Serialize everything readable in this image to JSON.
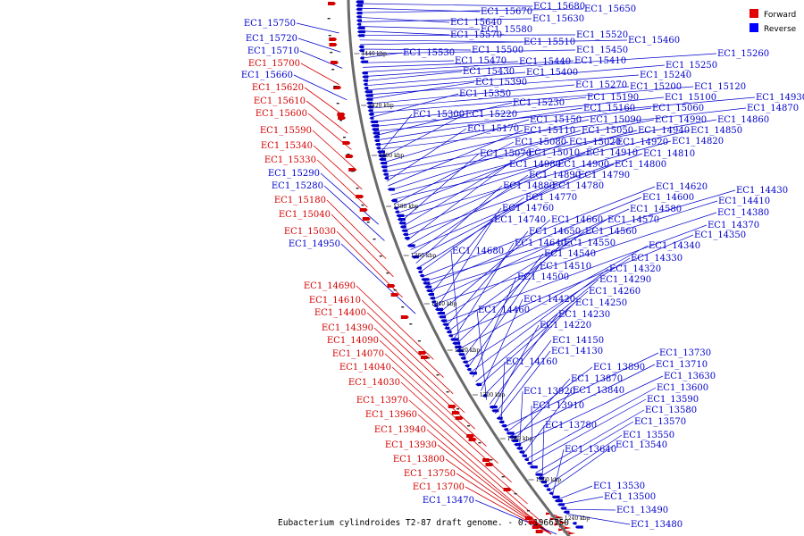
{
  "caption": "Eubacterium cylindroides T2-87 draft genome. - 0..1966750",
  "legend": [
    {
      "name": "Forward",
      "color": "#e00000"
    },
    {
      "name": "Reverse",
      "color": "#0000ff"
    }
  ],
  "colors": {
    "forward": "#d40000",
    "reverse": "#0000cc",
    "backbone": "#808080"
  },
  "ticks": [
    "1440 kbp",
    "1420 kbp",
    "1400 kbp",
    "1380 kbp",
    "1360 kbp",
    "1340 kbp",
    "1320 kbp",
    "1300 kbp",
    "1280 kbp",
    "1260 kbp",
    "1240 kbp"
  ],
  "forward_labels": [
    "EC1_15750",
    "EC1_15720",
    "EC1_15710",
    "EC1_15700",
    "EC1_15660",
    "EC1_15620",
    "EC1_15610",
    "EC1_15600",
    "EC1_15590",
    "EC1_15340",
    "EC1_15330",
    "EC1_15290",
    "EC1_15280",
    "EC1_15180",
    "EC1_15040",
    "EC1_15030",
    "EC1_14950",
    "EC1_14690",
    "EC1_14610",
    "EC1_14400",
    "EC1_14390",
    "EC1_14090",
    "EC1_14070",
    "EC1_14040",
    "EC1_14030",
    "EC1_13970",
    "EC1_13960",
    "EC1_13940",
    "EC1_13930",
    "EC1_13800",
    "EC1_13750",
    "EC1_13700",
    "EC1_13470"
  ],
  "forward_label_strands": [
    "r",
    "r",
    "r",
    "f",
    "r",
    "f",
    "f",
    "f",
    "f",
    "f",
    "f",
    "r",
    "r",
    "f",
    "f",
    "f",
    "r",
    "f",
    "f",
    "f",
    "f",
    "f",
    "f",
    "f",
    "f",
    "f",
    "f",
    "f",
    "f",
    "f",
    "f",
    "f",
    "r"
  ],
  "reverse_labels": [
    "EC1_15680",
    "EC1_15670",
    "EC1_15650",
    "EC1_15640",
    "EC1_15630",
    "EC1_15580",
    "EC1_15570",
    "EC1_15520",
    "EC1_15510",
    "EC1_15460",
    "EC1_15500",
    "EC1_15450",
    "EC1_15530",
    "EC1_15470",
    "EC1_15440",
    "EC1_15410",
    "EC1_15260",
    "EC1_15430",
    "EC1_15400",
    "EC1_15250",
    "EC1_15240",
    "EC1_15390",
    "EC1_15270",
    "EC1_15200",
    "EC1_15120",
    "EC1_15350",
    "EC1_15190",
    "EC1_15100",
    "EC1_14930",
    "EC1_15230",
    "EC1_15160",
    "EC1_15060",
    "EC1_14870",
    "EC1_15300",
    "EC1_15220",
    "EC1_15150",
    "EC1_15090",
    "EC1_14990",
    "EC1_14860",
    "EC1_15170",
    "EC1_15110",
    "EC1_15050",
    "EC1_14940",
    "EC1_14850",
    "EC1_15080",
    "EC1_15020",
    "EC1_14920",
    "EC1_14820",
    "EC1_15070",
    "EC1_15010",
    "EC1_14910",
    "EC1_14810",
    "EC1_14980",
    "EC1_14900",
    "EC1_14800",
    "EC1_14890",
    "EC1_14790",
    "EC1_14880",
    "EC1_14780",
    "EC1_14770",
    "EC1_14620",
    "EC1_14430",
    "EC1_14600",
    "EC1_14410",
    "EC1_14760",
    "EC1_14580",
    "EC1_14380",
    "EC1_14740",
    "EC1_14660",
    "EC1_14570",
    "EC1_14370",
    "EC1_14650",
    "EC1_14560",
    "EC1_14350",
    "EC1_14640",
    "EC1_14550",
    "EC1_14340",
    "EC1_14680",
    "EC1_14540",
    "EC1_14330",
    "EC1_14510",
    "EC1_14320",
    "EC1_14500",
    "EC1_14290",
    "EC1_14260",
    "EC1_14420",
    "EC1_14250",
    "EC1_14460",
    "EC1_14230",
    "EC1_14220",
    "EC1_14150",
    "EC1_14130",
    "EC1_14160",
    "EC1_13730",
    "EC1_13890",
    "EC1_13710",
    "EC1_13870",
    "EC1_13630",
    "EC1_13920",
    "EC1_13840",
    "EC1_13600",
    "EC1_13590",
    "EC1_13910",
    "EC1_13580",
    "EC1_13570",
    "EC1_13780",
    "EC1_13550",
    "EC1_13540",
    "EC1_13640",
    "EC1_13530",
    "EC1_13500",
    "EC1_13490",
    "EC1_13480"
  ]
}
